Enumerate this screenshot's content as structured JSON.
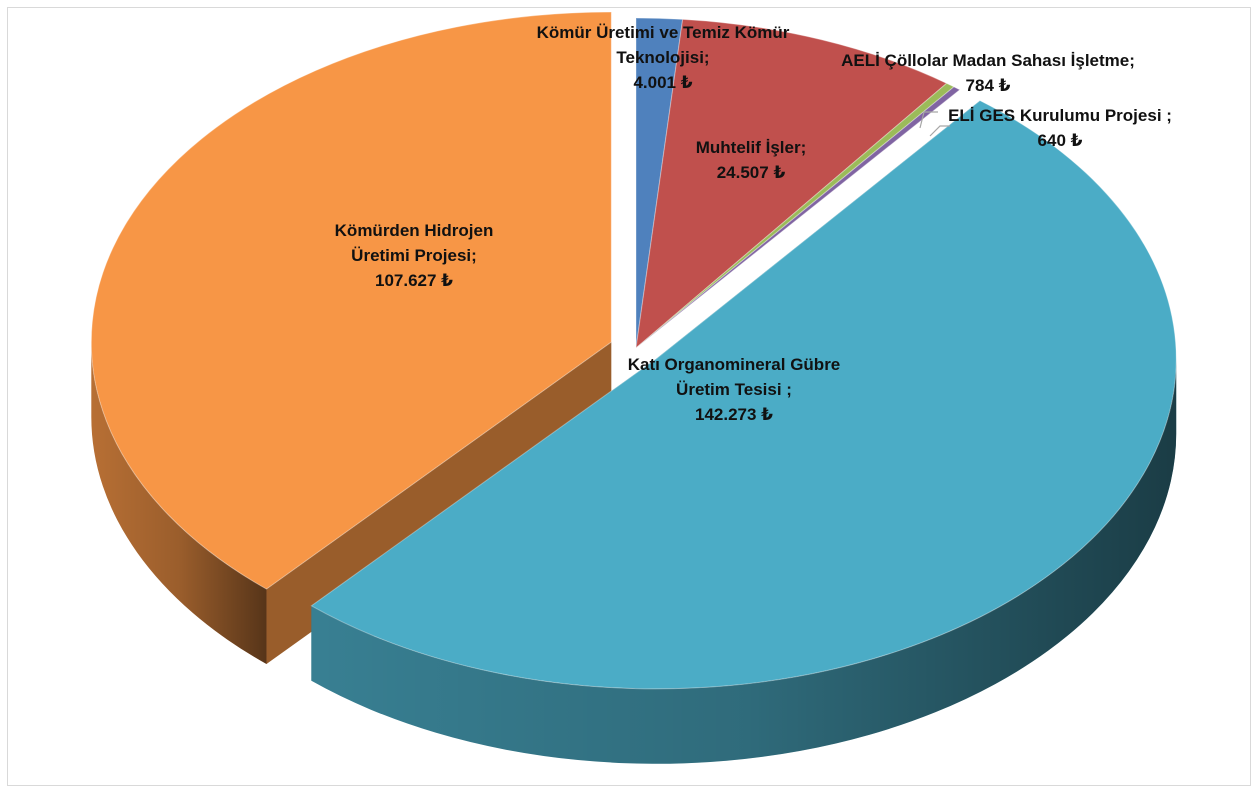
{
  "chart_data": {
    "type": "pie",
    "style": "3d-exploded",
    "currency_symbol": "₺",
    "slices": [
      {
        "name": "Kömür Üretimi ve Temiz Kömür Teknolojisi;",
        "label_lines": [
          "Kömür Üretimi ve Temiz Kömür",
          "Teknolojisi;"
        ],
        "value_text": "4.001 ₺",
        "value": 4001,
        "color": "#4F81BD",
        "exploded": false
      },
      {
        "name": "Muhtelif İşler;",
        "label_lines": [
          "Muhtelif İşler;"
        ],
        "value_text": "24.507 ₺",
        "value": 24507,
        "color": "#C0504D",
        "exploded": false
      },
      {
        "name": "AELİ Çöllolar Madan Sahası İşletme;",
        "label_lines": [
          "AELİ Çöllolar Madan Sahası İşletme;"
        ],
        "value_text": "784 ₺",
        "value": 784,
        "color": "#9BBB59",
        "exploded": false
      },
      {
        "name": "ELİ GES Kurulumu Projesi ;",
        "label_lines": [
          "ELİ GES Kurulumu Projesi ;"
        ],
        "value_text": "640 ₺",
        "value": 640,
        "color": "#8064A2",
        "exploded": false
      },
      {
        "name": "Katı Organomineral Gübre Üretim Tesisi ;",
        "label_lines": [
          "Katı Organomineral Gübre",
          "Üretim Tesisi ;"
        ],
        "value_text": "142.273 ₺",
        "value": 142273,
        "color": "#4BACC6",
        "exploded": true
      },
      {
        "name": "Kömürden Hidrojen Üretimi Projesi;",
        "label_lines": [
          "Kömürden Hidrojen",
          "Üretimi Projesi;"
        ],
        "value_text": "107.627 ₺",
        "value": 107627,
        "color": "#F79646",
        "exploded": true
      }
    ]
  }
}
